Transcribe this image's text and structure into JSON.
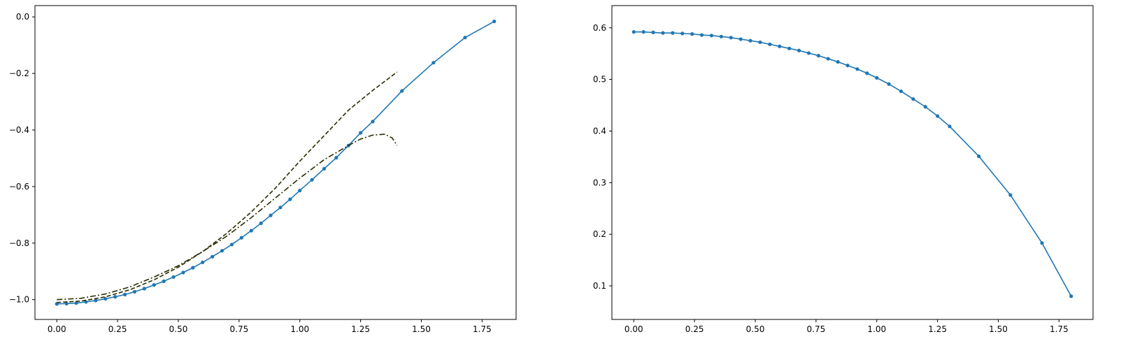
{
  "colors": {
    "series_blue": "#1f77b4",
    "reference": "#2b2b00",
    "axes": "#000000",
    "background": "#ffffff"
  },
  "chart_data": [
    {
      "type": "line",
      "xlim": [
        -0.09,
        1.89
      ],
      "ylim": [
        -1.07,
        0.04
      ],
      "grid": false,
      "legend": "none",
      "xticks": [
        "0.00",
        "0.25",
        "0.50",
        "0.75",
        "1.00",
        "1.25",
        "1.50",
        "1.75"
      ],
      "yticks": [
        "−1.0",
        "−0.8",
        "−0.6",
        "−0.4",
        "−0.2",
        "0.0"
      ],
      "series": [
        {
          "style": "solid-markers",
          "color": "#1f77b4",
          "x": [
            0.0,
            0.04,
            0.08,
            0.12,
            0.16,
            0.2,
            0.24,
            0.28,
            0.32,
            0.36,
            0.4,
            0.44,
            0.48,
            0.52,
            0.56,
            0.6,
            0.64,
            0.68,
            0.72,
            0.76,
            0.8,
            0.84,
            0.88,
            0.92,
            0.96,
            1.0,
            1.05,
            1.1,
            1.15,
            1.2,
            1.25,
            1.3,
            1.42,
            1.55,
            1.68,
            1.8
          ],
          "y": [
            -1.015,
            -1.014,
            -1.012,
            -1.008,
            -1.003,
            -0.997,
            -0.99,
            -0.982,
            -0.972,
            -0.961,
            -0.948,
            -0.935,
            -0.92,
            -0.904,
            -0.887,
            -0.868,
            -0.848,
            -0.827,
            -0.805,
            -0.781,
            -0.756,
            -0.73,
            -0.702,
            -0.674,
            -0.645,
            -0.614,
            -0.576,
            -0.537,
            -0.498,
            -0.455,
            -0.41,
            -0.37,
            -0.262,
            -0.162,
            -0.073,
            -0.016
          ]
        },
        {
          "style": "dashed",
          "color": "#2b2b00",
          "x": [
            0.0,
            0.1,
            0.2,
            0.3,
            0.4,
            0.5,
            0.6,
            0.7,
            0.8,
            0.9,
            1.0,
            1.1,
            1.2,
            1.3,
            1.4
          ],
          "y": [
            -1.01,
            -1.005,
            -0.99,
            -0.965,
            -0.93,
            -0.885,
            -0.83,
            -0.765,
            -0.69,
            -0.605,
            -0.51,
            -0.42,
            -0.33,
            -0.26,
            -0.195
          ]
        },
        {
          "style": "dash-dot",
          "color": "#2b2b00",
          "x": [
            0.0,
            0.1,
            0.2,
            0.3,
            0.4,
            0.5,
            0.6,
            0.7,
            0.8,
            0.9,
            1.0,
            1.1,
            1.2,
            1.25,
            1.3,
            1.35,
            1.38,
            1.4
          ],
          "y": [
            -1.0,
            -0.995,
            -0.98,
            -0.955,
            -0.92,
            -0.88,
            -0.83,
            -0.775,
            -0.71,
            -0.64,
            -0.57,
            -0.505,
            -0.455,
            -0.432,
            -0.418,
            -0.415,
            -0.428,
            -0.455
          ]
        }
      ]
    },
    {
      "type": "line",
      "xlim": [
        -0.09,
        1.89
      ],
      "ylim": [
        0.035,
        0.643
      ],
      "grid": false,
      "legend": "none",
      "xticks": [
        "0.00",
        "0.25",
        "0.50",
        "0.75",
        "1.00",
        "1.25",
        "1.50",
        "1.75"
      ],
      "yticks": [
        "0.1",
        "0.2",
        "0.3",
        "0.4",
        "0.5",
        "0.6"
      ],
      "series": [
        {
          "style": "solid-markers",
          "color": "#1f77b4",
          "x": [
            0.0,
            0.04,
            0.08,
            0.12,
            0.16,
            0.2,
            0.24,
            0.28,
            0.32,
            0.36,
            0.4,
            0.44,
            0.48,
            0.52,
            0.56,
            0.6,
            0.64,
            0.68,
            0.72,
            0.76,
            0.8,
            0.84,
            0.88,
            0.92,
            0.96,
            1.0,
            1.05,
            1.1,
            1.15,
            1.2,
            1.25,
            1.3,
            1.42,
            1.55,
            1.68,
            1.8
          ],
          "y": [
            0.592,
            0.592,
            0.591,
            0.59,
            0.59,
            0.589,
            0.588,
            0.586,
            0.585,
            0.583,
            0.581,
            0.578,
            0.575,
            0.572,
            0.568,
            0.564,
            0.56,
            0.556,
            0.551,
            0.546,
            0.54,
            0.534,
            0.527,
            0.52,
            0.512,
            0.503,
            0.491,
            0.477,
            0.462,
            0.447,
            0.429,
            0.409,
            0.351,
            0.276,
            0.183,
            0.08
          ]
        }
      ]
    }
  ]
}
